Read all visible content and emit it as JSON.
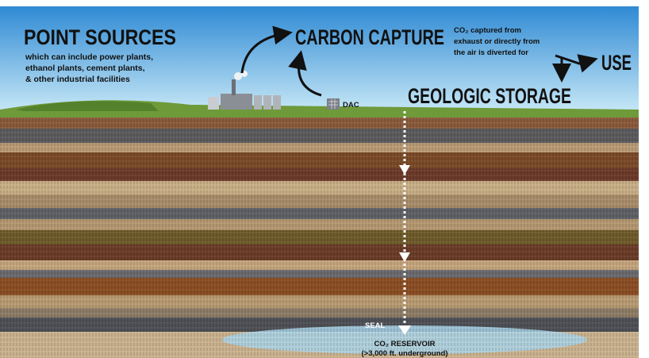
{
  "headings": {
    "point_sources": "POINT SOURCES",
    "carbon_capture": "CARBON CAPTURE",
    "use": "USE",
    "geologic_storage": "GEOLOGIC STORAGE"
  },
  "point_sources_note": [
    "which can include power plants,",
    "ethanol plants, cement plants,",
    "& other industrial facilities"
  ],
  "capture_note": [
    "CO₂ captured from",
    "exhaust or directly from",
    "the air is diverted for"
  ],
  "labels": {
    "dac": "DAC",
    "seal": "SEAL",
    "reservoir": "CO₂ RESERVOIR",
    "depth": "(>3,000 ft. underground)"
  }
}
